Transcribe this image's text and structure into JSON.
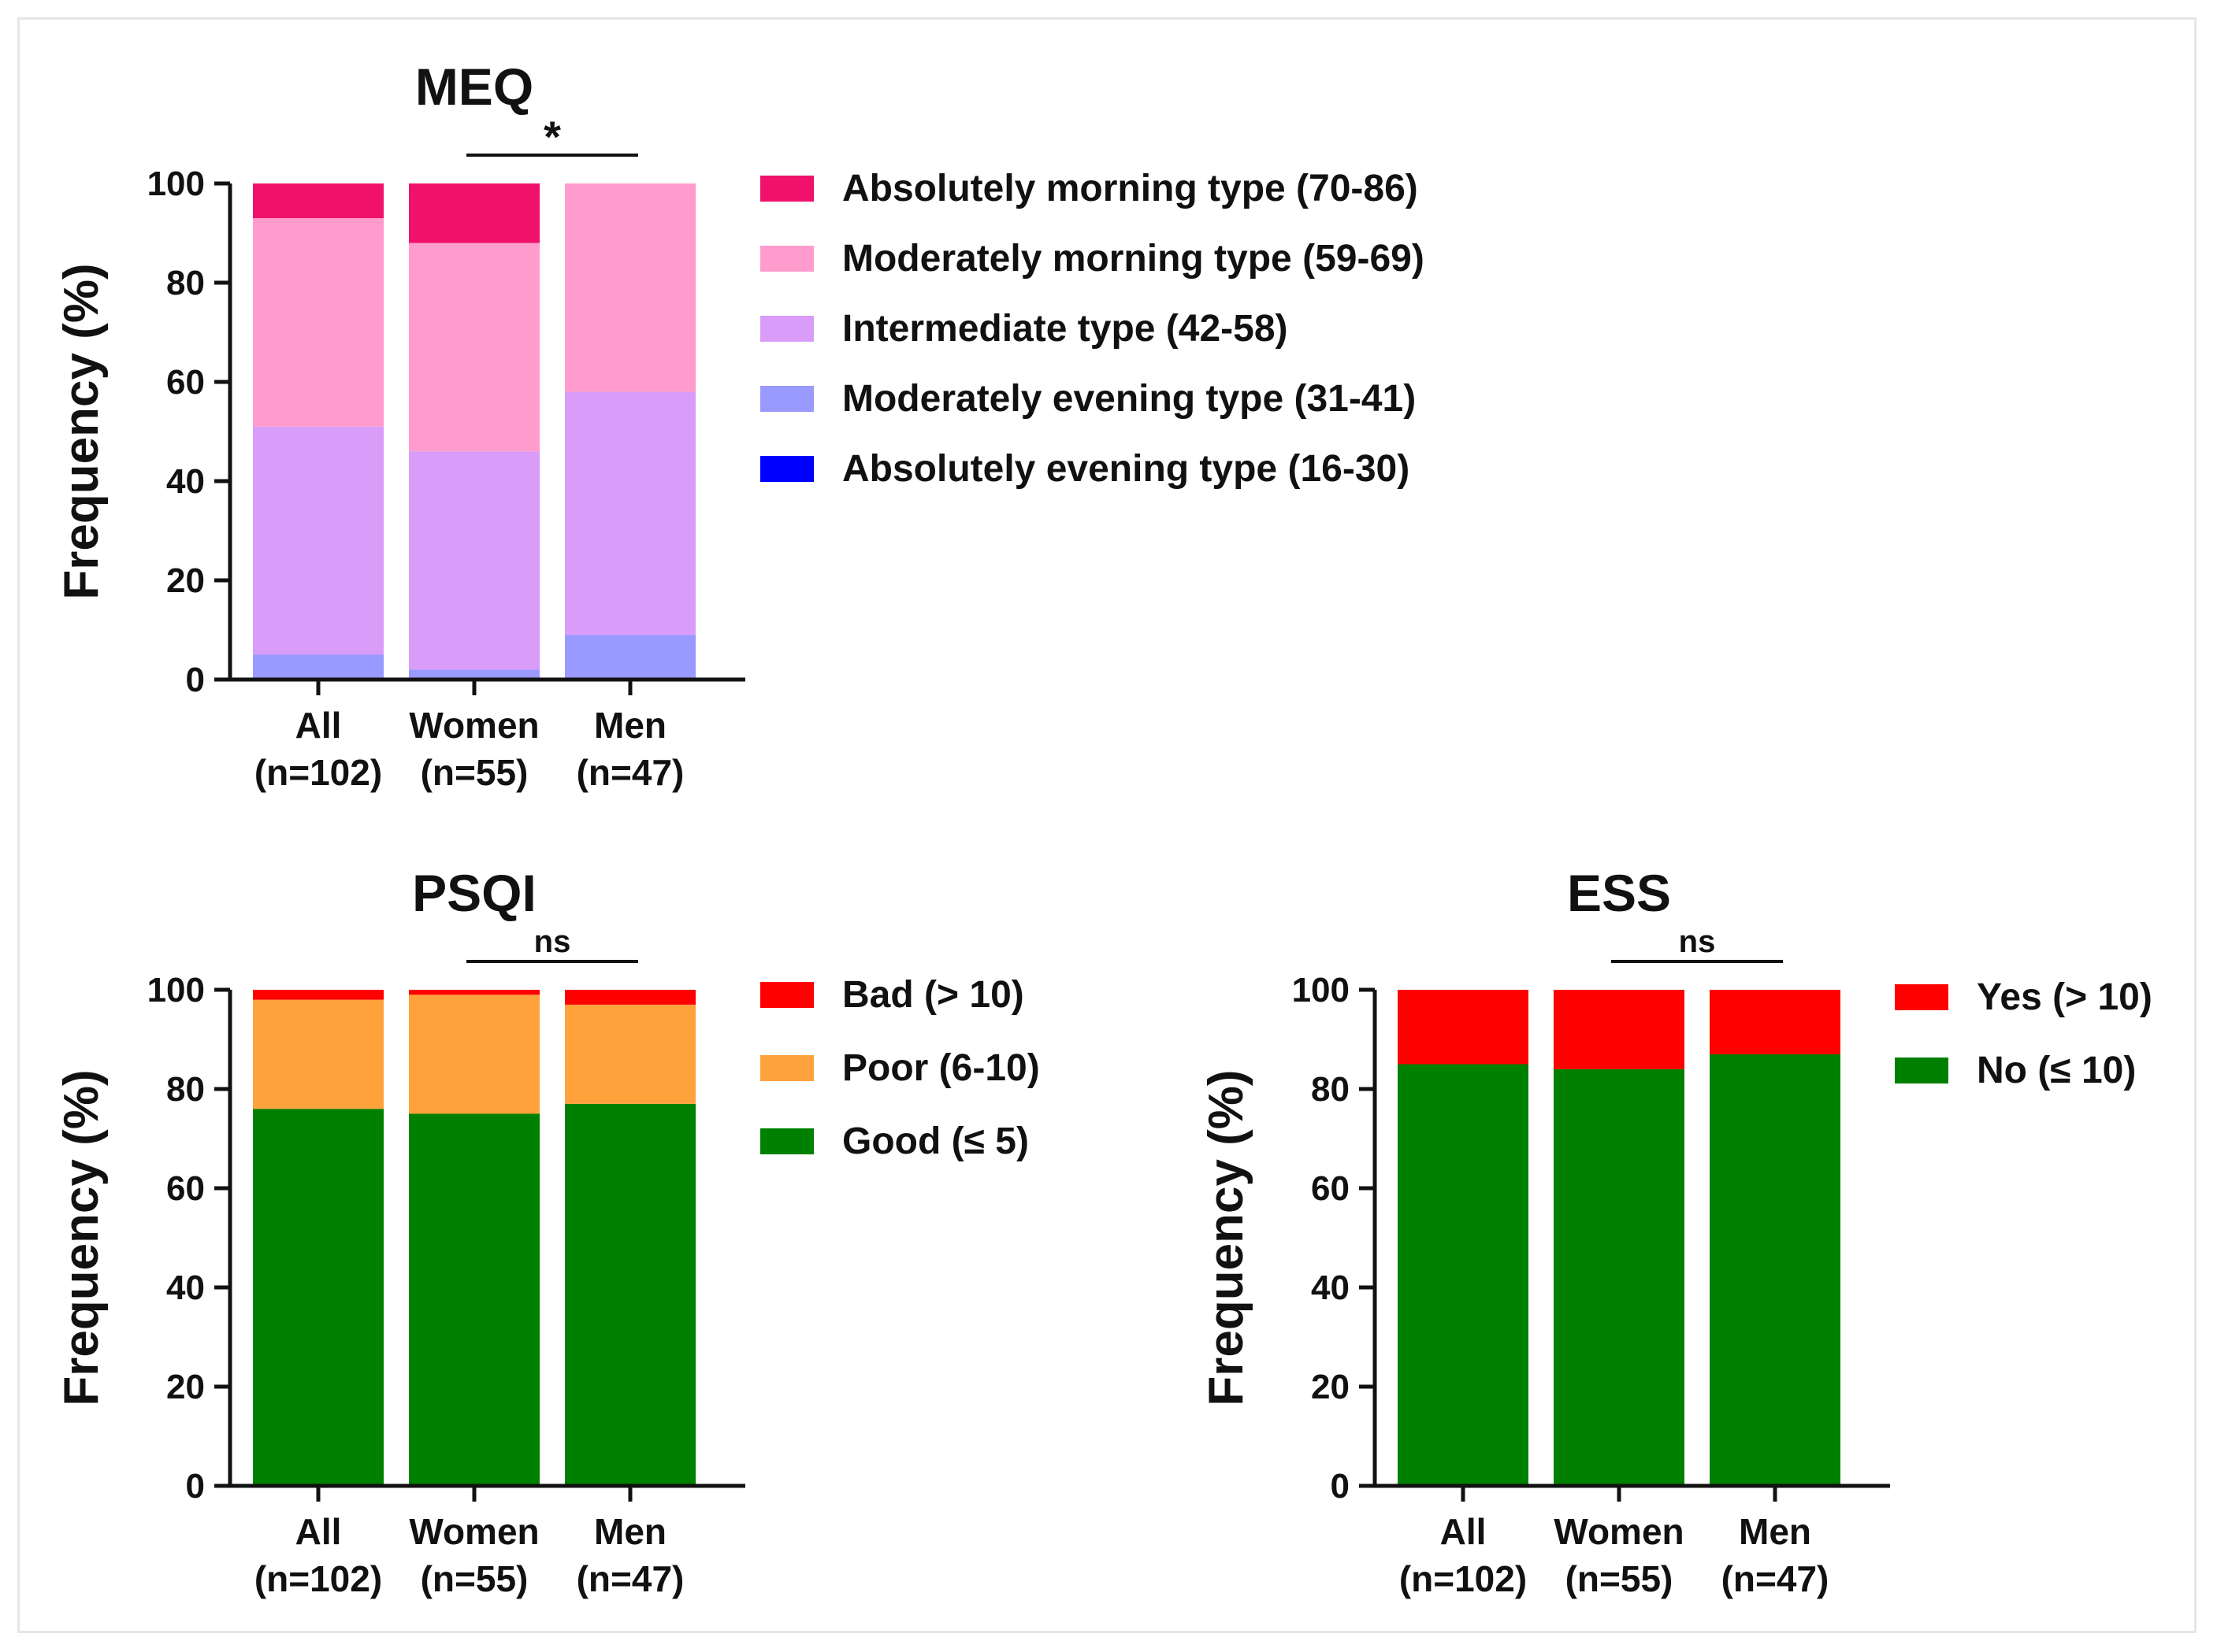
{
  "chart_data": [
    {
      "id": "meq",
      "type": "bar",
      "stacked": true,
      "title": "MEQ",
      "ylabel": "Frequency (%)",
      "ylim": [
        0,
        100
      ],
      "yticks": [
        0,
        20,
        40,
        60,
        80,
        100
      ],
      "categories": [
        {
          "line1": "All",
          "line2": "(n=102)"
        },
        {
          "line1": "Women",
          "line2": "(n=55)"
        },
        {
          "line1": "Men",
          "line2": "(n=47)"
        }
      ],
      "significance": {
        "from": 1,
        "to": 2,
        "label": "*"
      },
      "series": [
        {
          "name": "Absolutely evening type (16-30)",
          "color": "#0000ff",
          "values": [
            0,
            0,
            0
          ]
        },
        {
          "name": "Moderately evening type (31-41)",
          "color": "#9999ff",
          "values": [
            5,
            2,
            9
          ]
        },
        {
          "name": "Intermediate type (42-58)",
          "color": "#d99cf9",
          "values": [
            46,
            44,
            49
          ]
        },
        {
          "name": "Moderately morning type (59-69)",
          "color": "#ff9ccd",
          "values": [
            42,
            42,
            42
          ]
        },
        {
          "name": "Absolutely morning type (70-86)",
          "color": "#f0116b",
          "values": [
            7,
            12,
            0
          ]
        }
      ],
      "legend_order": [
        "Absolutely morning type (70-86)",
        "Moderately morning type (59-69)",
        "Intermediate type (42-58)",
        "Moderately evening type (31-41)",
        "Absolutely evening type (16-30)"
      ]
    },
    {
      "id": "psqi",
      "type": "bar",
      "stacked": true,
      "title": "PSQI",
      "ylabel": "Frequency (%)",
      "ylim": [
        0,
        100
      ],
      "yticks": [
        0,
        20,
        40,
        60,
        80,
        100
      ],
      "categories": [
        {
          "line1": "All",
          "line2": "(n=102)"
        },
        {
          "line1": "Women",
          "line2": "(n=55)"
        },
        {
          "line1": "Men",
          "line2": "(n=47)"
        }
      ],
      "significance": {
        "from": 1,
        "to": 2,
        "label": "ns"
      },
      "series": [
        {
          "name": "Good (≤ 5)",
          "color": "#008000",
          "values": [
            76,
            75,
            77
          ]
        },
        {
          "name": "Poor (6-10)",
          "color": "#ffa23c",
          "values": [
            22,
            24,
            20
          ]
        },
        {
          "name": "Bad (> 10)",
          "color": "#ff0000",
          "values": [
            2,
            1,
            3
          ]
        }
      ],
      "legend_order": [
        "Bad (> 10)",
        "Poor (6-10)",
        "Good (≤ 5)"
      ]
    },
    {
      "id": "ess",
      "type": "bar",
      "stacked": true,
      "title": "ESS",
      "ylabel": "Frequency (%)",
      "ylim": [
        0,
        100
      ],
      "yticks": [
        0,
        20,
        40,
        60,
        80,
        100
      ],
      "categories": [
        {
          "line1": "All",
          "line2": "(n=102)"
        },
        {
          "line1": "Women",
          "line2": "(n=55)"
        },
        {
          "line1": "Men",
          "line2": "(n=47)"
        }
      ],
      "significance": {
        "from": 1,
        "to": 2,
        "label": "ns"
      },
      "series": [
        {
          "name": "No (≤ 10)",
          "color": "#008000",
          "values": [
            85,
            84,
            87
          ]
        },
        {
          "name": "Yes (> 10)",
          "color": "#ff0000",
          "values": [
            15,
            16,
            13
          ]
        }
      ],
      "legend_order": [
        "Yes (> 10)",
        "No (≤ 10)"
      ]
    }
  ]
}
